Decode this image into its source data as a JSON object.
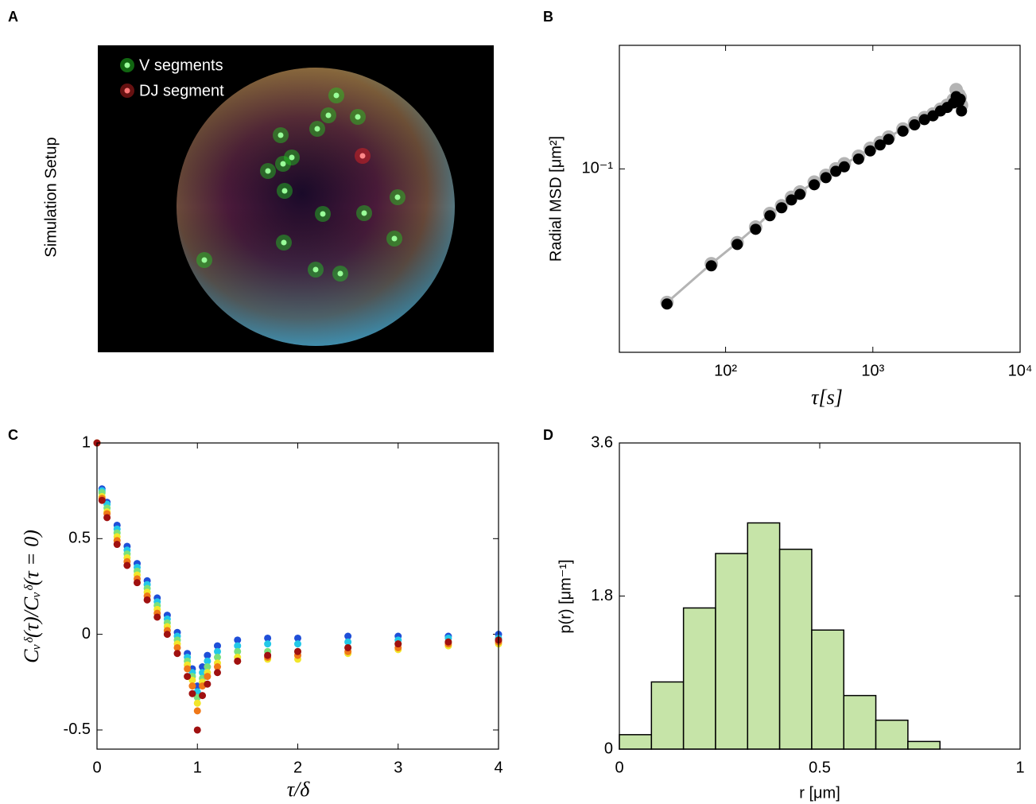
{
  "setup": {
    "panel": "A",
    "side_label": "Simulation Setup",
    "legend": [
      {
        "name": "V segments"
      },
      {
        "name": "DJ segment"
      }
    ]
  },
  "chart_data": [
    {
      "type": "line",
      "panel": "B",
      "xlabel": "τ[s]",
      "ylabel": "Radial MSD [μm²]",
      "xscale": "log",
      "yscale": "log",
      "xlim": [
        19,
        10000
      ],
      "ylim": [
        0.017,
        0.33
      ],
      "xticks": [
        {
          "value": 100,
          "label": "10²"
        },
        {
          "value": 1000,
          "label": "10³"
        },
        {
          "value": 10000,
          "label": "10⁴"
        }
      ],
      "yticks": [
        {
          "value": 0.1,
          "label": "10⁻¹"
        }
      ],
      "x": [
        40,
        80,
        120,
        160,
        200,
        240,
        280,
        320,
        400,
        480,
        560,
        640,
        800,
        960,
        1120,
        1280,
        1600,
        1920,
        2240,
        2560,
        2880,
        3200,
        3520,
        3680,
        3840,
        3920,
        4000
      ],
      "series": [
        {
          "color": "#b4b4b4",
          "linestyle": "solid",
          "values": [
            0.0275,
            0.04,
            0.049,
            0.057,
            0.065,
            0.07,
            0.076,
            0.08,
            0.088,
            0.094,
            0.1,
            0.105,
            0.113,
            0.122,
            0.129,
            0.136,
            0.147,
            0.156,
            0.164,
            0.17,
            0.178,
            0.185,
            0.195,
            0.215,
            0.205,
            0.2,
            0.185
          ]
        },
        {
          "color": "#000000",
          "linestyle": "none",
          "values": [
            0.0271,
            0.0392,
            0.0482,
            0.0558,
            0.0636,
            0.0687,
            0.0741,
            0.0782,
            0.0858,
            0.0919,
            0.0977,
            0.102,
            0.11,
            0.119,
            0.126,
            0.133,
            0.144,
            0.153,
            0.161,
            0.167,
            0.175,
            0.181,
            0.189,
            0.201,
            0.191,
            0.196,
            0.175
          ]
        }
      ]
    },
    {
      "type": "scatter",
      "panel": "C",
      "xlabel": "τ/δ",
      "ylabel": "Cᵥᵟ(τ)/Cᵥᵟ(τ = 0)",
      "xlim": [
        0,
        4
      ],
      "ylim": [
        -0.6,
        1
      ],
      "xticks": [
        0,
        1,
        2,
        3,
        4
      ],
      "yticks": [
        -0.5,
        0,
        0.5,
        1
      ],
      "x": [
        0,
        0.05,
        0.1,
        0.2,
        0.3,
        0.4,
        0.5,
        0.6,
        0.7,
        0.8,
        0.9,
        0.95,
        1,
        1.05,
        1.1,
        1.2,
        1.4,
        1.7,
        2,
        2.5,
        3,
        3.5,
        4
      ],
      "series": [
        {
          "color": "#1f4fd8",
          "values": [
            1,
            0.76,
            0.69,
            0.57,
            0.46,
            0.37,
            0.28,
            0.19,
            0.1,
            0.01,
            -0.1,
            -0.18,
            -0.27,
            -0.17,
            -0.11,
            -0.06,
            -0.03,
            -0.02,
            -0.02,
            -0.01,
            -0.01,
            -0.01,
            0
          ]
        },
        {
          "color": "#22c8e8",
          "values": [
            1,
            0.75,
            0.68,
            0.55,
            0.44,
            0.35,
            0.26,
            0.17,
            0.08,
            -0.01,
            -0.12,
            -0.2,
            -0.3,
            -0.2,
            -0.14,
            -0.09,
            -0.06,
            -0.05,
            -0.05,
            -0.04,
            -0.03,
            -0.02,
            -0.02
          ]
        },
        {
          "color": "#7be07b",
          "values": [
            1,
            0.74,
            0.66,
            0.53,
            0.42,
            0.33,
            0.24,
            0.15,
            0.06,
            -0.03,
            -0.14,
            -0.22,
            -0.33,
            -0.23,
            -0.17,
            -0.12,
            -0.09,
            -0.09,
            -0.09,
            -0.07,
            -0.05,
            -0.04,
            -0.03
          ]
        },
        {
          "color": "#f2e62a",
          "values": [
            1,
            0.72,
            0.64,
            0.51,
            0.4,
            0.31,
            0.22,
            0.13,
            0.04,
            -0.05,
            -0.16,
            -0.24,
            -0.36,
            -0.25,
            -0.2,
            -0.15,
            -0.12,
            -0.13,
            -0.13,
            -0.1,
            -0.08,
            -0.06,
            -0.05
          ]
        },
        {
          "color": "#f07818",
          "values": [
            1,
            0.71,
            0.63,
            0.49,
            0.38,
            0.29,
            0.2,
            0.11,
            0.02,
            -0.07,
            -0.18,
            -0.27,
            -0.4,
            -0.27,
            -0.22,
            -0.17,
            -0.14,
            -0.12,
            -0.11,
            -0.09,
            -0.07,
            -0.05,
            -0.04
          ]
        },
        {
          "color": "#a01010",
          "values": [
            1,
            0.7,
            0.61,
            0.47,
            0.36,
            0.27,
            0.18,
            0.09,
            0,
            -0.1,
            -0.22,
            -0.31,
            -0.5,
            -0.32,
            -0.26,
            -0.2,
            -0.14,
            -0.11,
            -0.09,
            -0.07,
            -0.05,
            -0.04,
            -0.03
          ]
        }
      ]
    },
    {
      "type": "histogram",
      "panel": "D",
      "xlabel": "r [μm]",
      "ylabel": "p(r) [μm⁻¹]",
      "color": "#c6e4a8",
      "xlim": [
        0,
        1
      ],
      "ylim": [
        0,
        3.6
      ],
      "xticks": [
        0,
        0.5,
        1
      ],
      "yticks": [
        0,
        1.8,
        3.6
      ],
      "bins": [
        0,
        0.08,
        0.16,
        0.24,
        0.32,
        0.4,
        0.48,
        0.56,
        0.64,
        0.72,
        0.8
      ],
      "values": [
        0.17,
        0.79,
        1.66,
        2.3,
        2.66,
        2.35,
        1.4,
        0.63,
        0.34,
        0.09
      ]
    }
  ]
}
